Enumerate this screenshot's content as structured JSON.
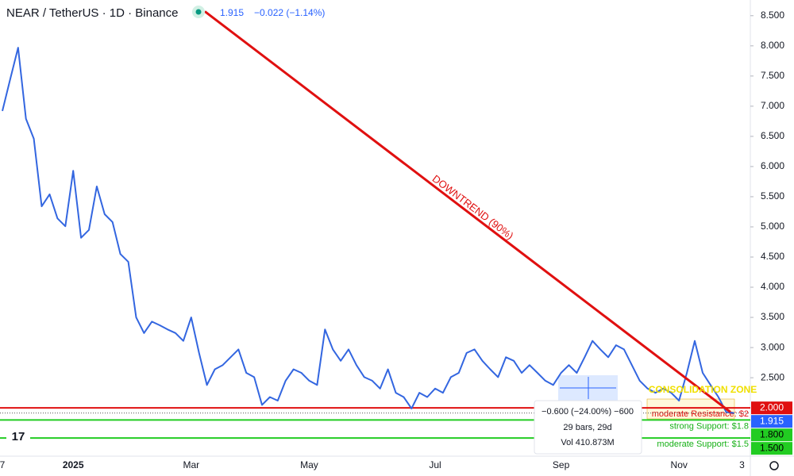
{
  "chart_data": {
    "type": "line",
    "title": "NEAR / TetherUS · 1D · Binance",
    "last_price": "1.915",
    "change": "−0.022 (−1.14%)",
    "categories": [
      "7",
      null,
      null,
      null,
      null,
      null,
      null,
      null,
      null,
      "2025",
      null,
      null,
      null,
      null,
      null,
      null,
      null,
      null,
      null,
      null,
      null,
      null,
      null,
      null,
      "Mar",
      null,
      null,
      null,
      null,
      null,
      null,
      null,
      null,
      null,
      null,
      null,
      null,
      null,
      null,
      "May",
      null,
      null,
      null,
      null,
      null,
      null,
      null,
      null,
      null,
      null,
      null,
      null,
      null,
      null,
      null,
      "Jul",
      null,
      null,
      null,
      null,
      null,
      null,
      null,
      null,
      null,
      null,
      null,
      null,
      null,
      null,
      null,
      "Sep",
      null,
      null,
      null,
      null,
      null,
      null,
      null,
      null,
      null,
      null,
      null,
      null,
      null,
      null,
      "Nov",
      null,
      null,
      null,
      null,
      null,
      null,
      null,
      "3"
    ],
    "series": [
      {
        "color": "#3366e0",
        "values": [
          6.92,
          7.45,
          7.97,
          6.79,
          6.46,
          5.34,
          5.54,
          5.14,
          5.01,
          5.93,
          4.82,
          4.95,
          5.67,
          5.21,
          5.08,
          4.55,
          4.42,
          3.5,
          3.24,
          3.43,
          3.37,
          3.3,
          3.24,
          3.11,
          3.5,
          2.91,
          2.38,
          2.64,
          2.71,
          2.84,
          2.97,
          2.58,
          2.51,
          2.05,
          2.18,
          2.12,
          2.45,
          2.64,
          2.58,
          2.45,
          2.38,
          3.3,
          2.97,
          2.78,
          2.97,
          2.71,
          2.51,
          2.45,
          2.32,
          2.64,
          2.25,
          2.18,
          1.99,
          2.25,
          2.18,
          2.32,
          2.25,
          2.51,
          2.58,
          2.91,
          2.97,
          2.78,
          2.64,
          2.51,
          2.84,
          2.78,
          2.58,
          2.71,
          2.58,
          2.45,
          2.38,
          2.58,
          2.71,
          2.58,
          2.84,
          3.11,
          2.97,
          2.84,
          3.04,
          2.97,
          2.71,
          2.45,
          2.32,
          2.25,
          2.32,
          2.25,
          2.12,
          2.58,
          3.11,
          2.58,
          2.38,
          2.18,
          1.93,
          1.915,
          null
        ]
      }
    ],
    "ylim": [
      1.2,
      8.76
    ],
    "yticks": [
      {
        "value": 2.5,
        "label": "2.500"
      },
      {
        "value": 3,
        "label": "3.000"
      },
      {
        "value": 3.5,
        "label": "3.500"
      },
      {
        "value": 4,
        "label": "4.000"
      },
      {
        "value": 4.5,
        "label": "4.500"
      },
      {
        "value": 5,
        "label": "5.000"
      },
      {
        "value": 5.5,
        "label": "5.500"
      },
      {
        "value": 6,
        "label": "6.000"
      },
      {
        "value": 6.5,
        "label": "6.500"
      },
      {
        "value": 7,
        "label": "7.000"
      },
      {
        "value": 7.5,
        "label": "7.500"
      },
      {
        "value": 8,
        "label": "8.000"
      },
      {
        "value": 8.5,
        "label": "8.500"
      }
    ],
    "levels": [
      {
        "name": "moderate Resistance: $2",
        "value": 2,
        "axis_label": "2.000",
        "color": "#e01010"
      },
      {
        "name": "strong Support: $1.8",
        "value": 1.8,
        "axis_label": "1.800",
        "color": "#22cc22"
      },
      {
        "name": "moderate Support: $1.5",
        "value": 1.5,
        "axis_label": "1.500",
        "color": "#22cc22"
      }
    ],
    "price_line": {
      "value": 1.915,
      "label": "1.915",
      "color": "#2962ff"
    },
    "trendline": {
      "label": "DOWNTREND (90%)",
      "from": 8.57,
      "to": 1.93,
      "color": "#e01010"
    },
    "zone_label": "CONSOLIDATION ZONE",
    "measure": {
      "change": "−0.600 (−24.00%) −600",
      "bars": "29 bars, 29d",
      "volume": "Vol 410.873M"
    }
  }
}
